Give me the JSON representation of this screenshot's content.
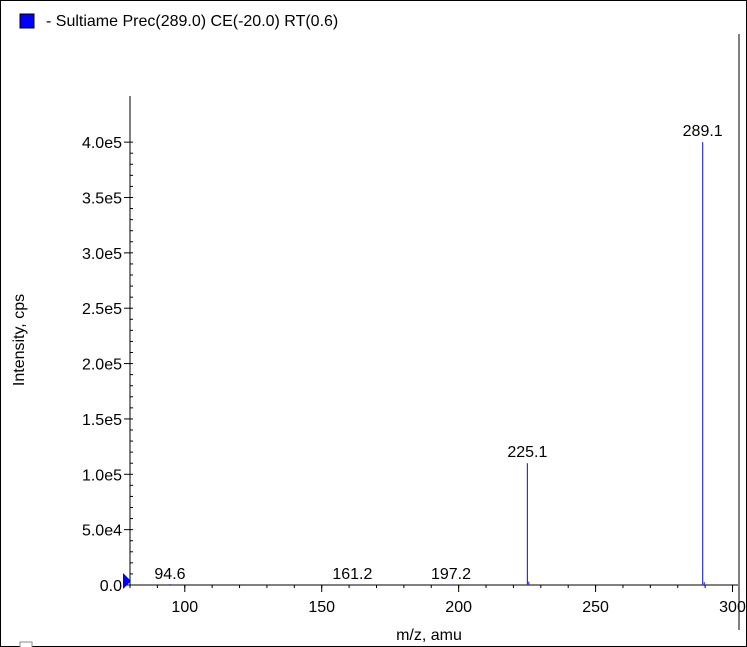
{
  "legend": {
    "label": "- Sultiame Prec(289.0) CE(-20.0) RT(0.6)",
    "marker_color": "#0000ff"
  },
  "chart_data": {
    "type": "bar",
    "title": "",
    "xlabel": "m/z, amu",
    "ylabel": "Intensity, cps",
    "xlim": [
      80,
      302
    ],
    "ylim": [
      0,
      420000
    ],
    "x_ticks": [
      100,
      150,
      200,
      250,
      300
    ],
    "y_ticks": [
      0,
      50000,
      100000,
      150000,
      200000,
      250000,
      300000,
      350000,
      400000
    ],
    "y_tick_labels": [
      "0.0",
      "5.0e4",
      "1.0e5",
      "1.5e5",
      "2.0e5",
      "2.5e5",
      "3.0e5",
      "3.5e5",
      "4.0e5"
    ],
    "series": [
      {
        "color": "#3333cc",
        "peaks": [
          {
            "x": 94.6,
            "y": 800
          },
          {
            "x": 161.2,
            "y": 600
          },
          {
            "x": 197.2,
            "y": 600
          },
          {
            "x": 225.1,
            "y": 110000
          },
          {
            "x": 225.6,
            "y": 3000
          },
          {
            "x": 289.1,
            "y": 400000
          },
          {
            "x": 289.7,
            "y": 2500
          }
        ]
      }
    ],
    "peak_labels": [
      {
        "x": 94.6,
        "text": "94.6",
        "level": 0
      },
      {
        "x": 161.2,
        "text": "161.2",
        "level": 0
      },
      {
        "x": 197.2,
        "text": "197.2",
        "level": 0
      },
      {
        "x": 225.1,
        "text": "225.1",
        "level": 110000
      },
      {
        "x": 289.1,
        "text": "289.1",
        "level": 400000
      }
    ],
    "origin_marker_color": "#0000ff",
    "grid": false,
    "legend_position": "top-left"
  }
}
